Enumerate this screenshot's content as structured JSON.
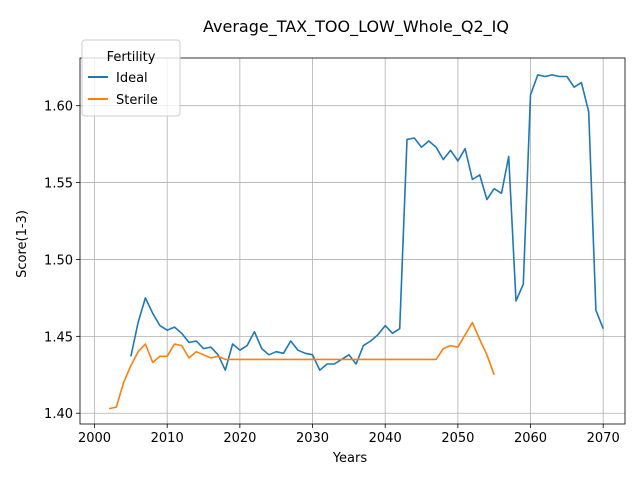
{
  "chart_data": {
    "type": "line",
    "title": "Average_TAX_TOO_LOW_Whole_Q2_IQ",
    "xlabel": "Years",
    "ylabel": "Score(1-3)",
    "xlim": [
      1998,
      2073
    ],
    "ylim": [
      1.393,
      1.631
    ],
    "xticks": [
      2000,
      2010,
      2020,
      2030,
      2040,
      2050,
      2060,
      2070
    ],
    "yticks": [
      1.4,
      1.45,
      1.5,
      1.55,
      1.6
    ],
    "ytick_labels": [
      "1.40",
      "1.45",
      "1.50",
      "1.55",
      "1.60"
    ],
    "grid": true,
    "legend": {
      "title": "Fertility",
      "position": "upper-left"
    },
    "series": [
      {
        "name": "Ideal",
        "color": "#1f77b4",
        "x": [
          2005,
          2006,
          2007,
          2008,
          2009,
          2010,
          2011,
          2012,
          2013,
          2014,
          2015,
          2016,
          2017,
          2018,
          2019,
          2020,
          2021,
          2022,
          2023,
          2024,
          2025,
          2026,
          2027,
          2028,
          2029,
          2030,
          2031,
          2032,
          2033,
          2034,
          2035,
          2036,
          2037,
          2038,
          2039,
          2040,
          2041,
          2042,
          2043,
          2044,
          2045,
          2046,
          2047,
          2048,
          2049,
          2050,
          2051,
          2052,
          2053,
          2054,
          2055,
          2056,
          2057,
          2058,
          2059,
          2060,
          2061,
          2062,
          2063,
          2064,
          2065,
          2066,
          2067,
          2068,
          2069,
          2070
        ],
        "y": [
          1.437,
          1.459,
          1.475,
          1.465,
          1.457,
          1.454,
          1.456,
          1.452,
          1.446,
          1.447,
          1.442,
          1.443,
          1.438,
          1.428,
          1.445,
          1.441,
          1.444,
          1.453,
          1.442,
          1.438,
          1.44,
          1.439,
          1.447,
          1.441,
          1.439,
          1.438,
          1.428,
          1.432,
          1.432,
          1.435,
          1.438,
          1.432,
          1.444,
          1.447,
          1.451,
          1.457,
          1.452,
          1.455,
          1.578,
          1.579,
          1.573,
          1.577,
          1.573,
          1.565,
          1.571,
          1.564,
          1.572,
          1.552,
          1.555,
          1.539,
          1.546,
          1.543,
          1.567,
          1.473,
          1.484,
          1.607,
          1.62,
          1.619,
          1.62,
          1.619,
          1.619,
          1.612,
          1.615,
          1.596,
          1.467,
          1.455
        ]
      },
      {
        "name": "Sterile",
        "color": "#ff7f0e",
        "x": [
          2002,
          2003,
          2004,
          2005,
          2006,
          2007,
          2008,
          2009,
          2010,
          2011,
          2012,
          2013,
          2014,
          2015,
          2016,
          2017,
          2018,
          2019,
          2020,
          2021,
          2022,
          2023,
          2024,
          2025,
          2026,
          2027,
          2028,
          2029,
          2030,
          2031,
          2032,
          2033,
          2034,
          2035,
          2036,
          2037,
          2038,
          2039,
          2040,
          2041,
          2042,
          2043,
          2044,
          2045,
          2046,
          2047,
          2048,
          2049,
          2050,
          2051,
          2052,
          2053,
          2054,
          2055
        ],
        "y": [
          1.403,
          1.404,
          1.42,
          1.431,
          1.44,
          1.445,
          1.433,
          1.437,
          1.437,
          1.445,
          1.444,
          1.436,
          1.44,
          1.438,
          1.436,
          1.437,
          1.435,
          1.435,
          1.435,
          1.435,
          1.435,
          1.435,
          1.435,
          1.435,
          1.435,
          1.435,
          1.435,
          1.435,
          1.435,
          1.435,
          1.435,
          1.435,
          1.435,
          1.435,
          1.435,
          1.435,
          1.435,
          1.435,
          1.435,
          1.435,
          1.435,
          1.435,
          1.435,
          1.435,
          1.435,
          1.435,
          1.442,
          1.444,
          1.443,
          1.451,
          1.459,
          1.448,
          1.438,
          1.425
        ]
      }
    ]
  }
}
